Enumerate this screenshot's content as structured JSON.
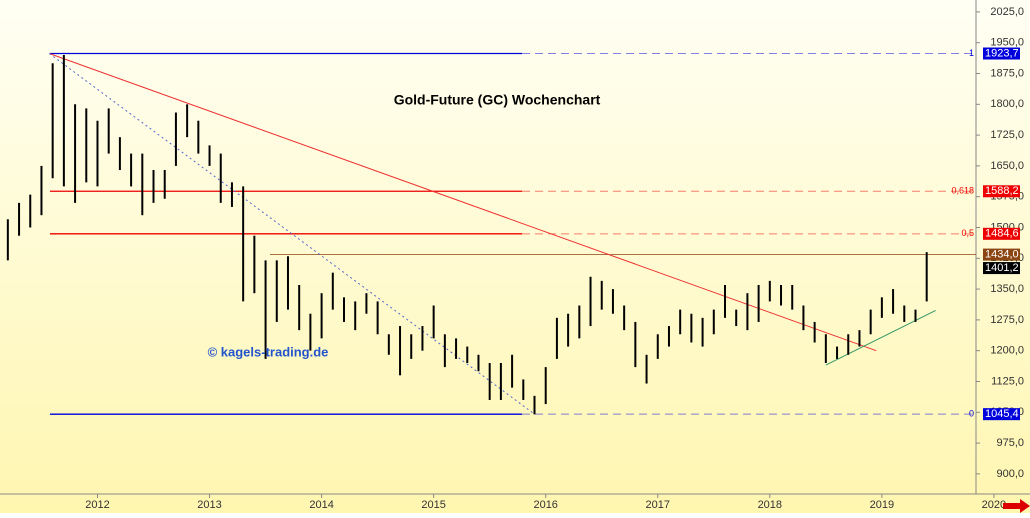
{
  "chart_data": {
    "type": "ohlc",
    "title": "Gold-Future (GC) Wochenchart",
    "watermark": "© kagels-trading.de",
    "x": [
      2011.2,
      2011.3,
      2011.4,
      2011.5,
      2011.6,
      2011.7,
      2011.8,
      2011.9,
      2012.0,
      2012.1,
      2012.2,
      2012.3,
      2012.4,
      2012.5,
      2012.6,
      2012.7,
      2012.8,
      2012.9,
      2013.0,
      2013.1,
      2013.2,
      2013.3,
      2013.4,
      2013.5,
      2013.6,
      2013.7,
      2013.8,
      2013.9,
      2014.0,
      2014.1,
      2014.2,
      2014.3,
      2014.4,
      2014.5,
      2014.6,
      2014.7,
      2014.8,
      2014.9,
      2015.0,
      2015.1,
      2015.2,
      2015.3,
      2015.4,
      2015.5,
      2015.6,
      2015.7,
      2015.8,
      2015.9,
      2016.0,
      2016.1,
      2016.2,
      2016.3,
      2016.4,
      2016.5,
      2016.6,
      2016.7,
      2016.8,
      2016.9,
      2017.0,
      2017.1,
      2017.2,
      2017.3,
      2017.4,
      2017.5,
      2017.6,
      2017.7,
      2017.8,
      2017.9,
      2018.0,
      2018.1,
      2018.2,
      2018.3,
      2018.4,
      2018.5,
      2018.6,
      2018.7,
      2018.8,
      2018.9,
      2019.0,
      2019.1,
      2019.2,
      2019.3,
      2019.4
    ],
    "series": [
      {
        "color": "#000000",
        "low": [
          1420,
          1480,
          1500,
          1530,
          1620,
          1600,
          1560,
          1610,
          1600,
          1680,
          1640,
          1600,
          1530,
          1560,
          1570,
          1650,
          1720,
          1680,
          1650,
          1560,
          1550,
          1320,
          1340,
          1180,
          1270,
          1300,
          1250,
          1200,
          1230,
          1300,
          1270,
          1250,
          1290,
          1240,
          1190,
          1140,
          1180,
          1200,
          1230,
          1160,
          1180,
          1170,
          1150,
          1080,
          1080,
          1110,
          1080,
          1045,
          1070,
          1180,
          1210,
          1230,
          1260,
          1300,
          1290,
          1250,
          1160,
          1120,
          1180,
          1210,
          1240,
          1220,
          1210,
          1240,
          1280,
          1260,
          1250,
          1270,
          1320,
          1310,
          1300,
          1250,
          1220,
          1170,
          1180,
          1190,
          1210,
          1240,
          1280,
          1290,
          1270,
          1270,
          1320
        ],
        "high": [
          1520,
          1560,
          1580,
          1650,
          1900,
          1920,
          1800,
          1790,
          1760,
          1790,
          1720,
          1680,
          1680,
          1640,
          1640,
          1780,
          1800,
          1760,
          1700,
          1680,
          1610,
          1600,
          1480,
          1420,
          1420,
          1430,
          1360,
          1290,
          1340,
          1390,
          1330,
          1320,
          1340,
          1320,
          1240,
          1260,
          1240,
          1260,
          1310,
          1240,
          1230,
          1210,
          1190,
          1170,
          1170,
          1190,
          1130,
          1090,
          1160,
          1280,
          1290,
          1310,
          1380,
          1370,
          1350,
          1310,
          1270,
          1190,
          1240,
          1260,
          1300,
          1290,
          1280,
          1300,
          1360,
          1300,
          1340,
          1360,
          1370,
          1360,
          1360,
          1310,
          1270,
          1240,
          1210,
          1240,
          1250,
          1300,
          1330,
          1350,
          1310,
          1300,
          1440
        ]
      }
    ],
    "levels": [
      {
        "value": 1923.7,
        "label": "1923,7",
        "fib": "1",
        "color": "#0000dd"
      },
      {
        "value": 1588.2,
        "label": "1588,2",
        "fib": "0,618",
        "color": "#ee0000"
      },
      {
        "value": 1484.6,
        "label": "1484,6",
        "fib": "0,5",
        "color": "#ee0000"
      },
      {
        "value": 1434.0,
        "label": "1434,0",
        "color": "#8b4513"
      },
      {
        "value": 1401.2,
        "label": "1401,2",
        "color": "#000000"
      },
      {
        "value": 1045.4,
        "label": "1045,4",
        "fib": "0",
        "color": "#0000dd"
      }
    ],
    "trendlines": [
      {
        "x": [
          2011.57,
          2018.95
        ],
        "y": [
          1923.7,
          1200
        ],
        "color": "#ee3333"
      },
      {
        "x": [
          2011.57,
          2015.9
        ],
        "y": [
          1923.7,
          1045.4
        ],
        "color": "#5566cc",
        "dashed": true
      },
      {
        "x": [
          2018.5,
          2019.48
        ],
        "y": [
          1165,
          1298
        ],
        "color": "#339966"
      }
    ],
    "xlim": [
      2011.13,
      2019.84
    ],
    "ylim": [
      851,
      2054
    ],
    "xticks": [
      2012,
      2013,
      2014,
      2015,
      2016,
      2017,
      2018,
      2019,
      2020
    ],
    "yticks": [
      {
        "value": 900,
        "label": "900,0"
      },
      {
        "value": 975,
        "label": "975,0"
      },
      {
        "value": 1050,
        "label": "1050,0"
      },
      {
        "value": 1125,
        "label": "1125,0"
      },
      {
        "value": 1200,
        "label": "1200,0"
      },
      {
        "value": 1275,
        "label": "1275,0"
      },
      {
        "value": 1350,
        "label": "1350,0"
      },
      {
        "value": 1425,
        "label": "1425,0"
      },
      {
        "value": 1500,
        "label": "1500,0"
      },
      {
        "value": 1575,
        "label": "1575,0"
      },
      {
        "value": 1650,
        "label": "1650,0"
      },
      {
        "value": 1725,
        "label": "1725,0"
      },
      {
        "value": 1800,
        "label": "1800,0"
      },
      {
        "value": 1875,
        "label": "1875,0"
      },
      {
        "value": 1950,
        "label": "1950,0"
      },
      {
        "value": 2025,
        "label": "2025,0"
      }
    ]
  }
}
